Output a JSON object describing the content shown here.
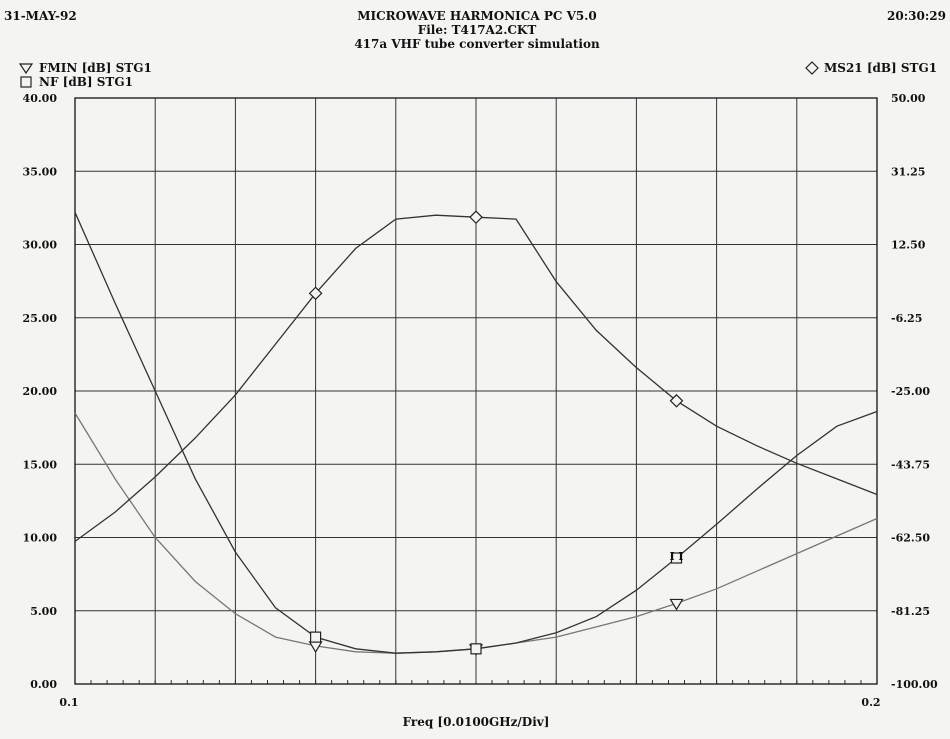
{
  "header": {
    "date": "31-MAY-92",
    "time": "20:30:29",
    "title": "MICROWAVE HARMONICA PC V5.0",
    "file": "File: T417A2.CKT",
    "subtitle": "417a VHF tube converter simulation"
  },
  "chart_data": {
    "type": "line",
    "xlabel": "Freq [0.0100GHz/Div]",
    "x_tick_labels": [
      "0.1",
      "0.2"
    ],
    "xlim": [
      0.1,
      0.2
    ],
    "y_left": {
      "lim": [
        0,
        40
      ],
      "tick_labels": [
        "40.00",
        "35.00",
        "30.00",
        "25.00",
        "20.00",
        "15.00",
        "10.00",
        "5.00",
        "0.00"
      ]
    },
    "y_right": {
      "lim": [
        -100,
        50
      ],
      "tick_labels": [
        "50.00",
        "31.25",
        "12.50",
        "-6.25",
        "-25.00",
        "-43.75",
        "-62.50",
        "-81.25",
        "-100.00"
      ]
    },
    "grid": true,
    "series": [
      {
        "name": "FMIN [dB] STG1",
        "marker": "triangle-down",
        "axis": "left",
        "x": [
          0.1,
          0.105,
          0.11,
          0.115,
          0.12,
          0.125,
          0.13,
          0.135,
          0.14,
          0.145,
          0.15,
          0.155,
          0.16,
          0.165,
          0.17,
          0.175,
          0.18,
          0.185,
          0.19,
          0.195,
          0.2
        ],
        "y": [
          18.5,
          14.0,
          10.0,
          7.0,
          4.8,
          3.2,
          2.6,
          2.2,
          2.1,
          2.2,
          2.4,
          2.8,
          3.2,
          3.9,
          4.6,
          5.5,
          6.5,
          7.7,
          8.9,
          10.1,
          11.3
        ],
        "marker_x": [
          0.13,
          0.15,
          0.175
        ]
      },
      {
        "name": "NF [dB] STG1",
        "marker": "square",
        "axis": "left",
        "x": [
          0.1,
          0.105,
          0.11,
          0.115,
          0.12,
          0.125,
          0.13,
          0.135,
          0.14,
          0.145,
          0.15,
          0.155,
          0.16,
          0.165,
          0.17,
          0.175,
          0.18,
          0.185,
          0.19,
          0.195,
          0.2
        ],
        "y": [
          32.2,
          26.0,
          20.0,
          14.0,
          9.0,
          5.2,
          3.2,
          2.4,
          2.1,
          2.2,
          2.4,
          2.8,
          3.5,
          4.6,
          6.4,
          8.6,
          10.9,
          13.3,
          15.6,
          17.6,
          18.6
        ],
        "marker_x": [
          0.13,
          0.15,
          0.175
        ],
        "label_at": {
          "x": 0.175,
          "text": "I I"
        }
      },
      {
        "name": "MS21 [dB] STG1",
        "marker": "diamond",
        "axis": "right",
        "x": [
          0.1,
          0.105,
          0.11,
          0.115,
          0.12,
          0.125,
          0.13,
          0.135,
          0.14,
          0.145,
          0.15,
          0.155,
          0.16,
          0.165,
          0.17,
          0.175,
          0.18,
          0.185,
          0.19,
          0.195,
          0.2
        ],
        "y": [
          -63.5,
          -56.0,
          -47.0,
          -37.0,
          -26.0,
          -13.0,
          0.0,
          11.5,
          19.0,
          20.0,
          19.5,
          19.0,
          3.0,
          -9.5,
          -19.0,
          -27.5,
          -34.0,
          -39.0,
          -43.5,
          -47.5,
          -51.5
        ],
        "marker_x": [
          0.13,
          0.15,
          0.175
        ]
      }
    ]
  }
}
